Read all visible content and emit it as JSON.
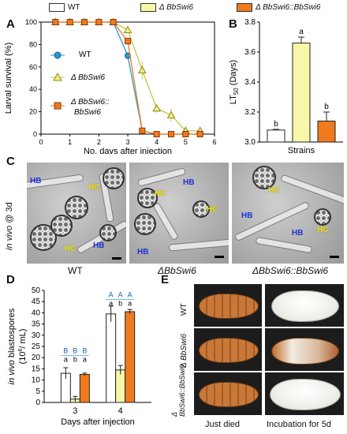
{
  "legend": {
    "items": [
      {
        "label": "WT",
        "color": "#ffffff"
      },
      {
        "label": "Δ BbSwi6",
        "color": "#f8f6a8"
      },
      {
        "label": "Δ BbSwi6::BbSwi6",
        "color": "#f07a1e"
      }
    ]
  },
  "panels": {
    "A": "A",
    "B": "B",
    "C": "C",
    "D": "D",
    "E": "E"
  },
  "chart_data": [
    {
      "id": "A",
      "type": "line",
      "xlabel": "No. days after injection",
      "ylabel": "Larval survival (%)",
      "xlim": [
        0,
        6
      ],
      "ylim": [
        0,
        100
      ],
      "xticks": [
        0,
        1,
        2,
        3,
        4,
        5,
        6
      ],
      "yticks": [
        0,
        20,
        40,
        60,
        80,
        100
      ],
      "series": [
        {
          "name": "WT",
          "color": "#2a9ad0",
          "marker": "circle",
          "x": [
            0.5,
            1,
            1.5,
            2,
            2.5,
            3,
            3.5,
            4,
            4.5,
            5,
            5.5
          ],
          "y": [
            100,
            100,
            100,
            100,
            100,
            70,
            3,
            0,
            0,
            0,
            0
          ],
          "err": [
            0,
            0,
            0,
            0,
            0,
            3,
            2,
            0,
            0,
            0,
            0
          ]
        },
        {
          "name": "Δ BbSwi6",
          "color": "#c8c24a",
          "marker": "triangle",
          "x": [
            0.5,
            1,
            1.5,
            2,
            2.5,
            3,
            3.5,
            4,
            4.5,
            5,
            5.5
          ],
          "y": [
            100,
            100,
            100,
            100,
            100,
            93,
            57,
            23,
            17,
            3,
            3
          ],
          "err": [
            0,
            0,
            0,
            0,
            0,
            3,
            8,
            4,
            6,
            2,
            2
          ]
        },
        {
          "name": "Δ BbSwi6:: BbSwi6",
          "color": "#f07a1e",
          "marker": "square",
          "x": [
            0.5,
            1,
            1.5,
            2,
            2.5,
            3,
            3.5,
            4,
            4.5,
            5,
            5.5
          ],
          "y": [
            100,
            100,
            100,
            100,
            100,
            83,
            3,
            0,
            0,
            0,
            0
          ],
          "err": [
            0,
            0,
            0,
            0,
            0,
            3,
            2,
            0,
            0,
            0,
            0
          ]
        }
      ],
      "series_labels": [
        "WT",
        "Δ BbSwi6",
        "Δ BbSwi6::",
        "BbSwi6"
      ]
    },
    {
      "id": "B",
      "type": "bar",
      "xlabel": "Strains",
      "ylabel_main": "LT",
      "ylabel_sub": "50",
      "ylabel_unit": " (Days)",
      "ylim": [
        3.0,
        3.8
      ],
      "yticks": [
        "3.0",
        "3.2",
        "3.4",
        "3.6",
        "3.8"
      ],
      "categories": [
        "WT",
        "Δ BbSwi6",
        "Δ BbSwi6::BbSwi6"
      ],
      "values": [
        3.08,
        3.66,
        3.14
      ],
      "errors": [
        0.005,
        0.04,
        0.06
      ],
      "colors": [
        "#ffffff",
        "#f8f6a8",
        "#f07a1e"
      ],
      "letters": [
        "b",
        "a",
        "b"
      ]
    },
    {
      "id": "D",
      "type": "bar",
      "xlabel": "Days after injection",
      "ylabel_italic": "in vivo",
      "ylabel_rest": " blastospores",
      "ylabel_unit": "(10",
      "ylabel_sup": "6",
      "ylabel_unit2": "/ mL)",
      "ylim": [
        0,
        50
      ],
      "yticks": [
        0,
        5,
        10,
        15,
        20,
        25,
        30,
        35,
        40,
        45,
        50
      ],
      "categories": [
        "3",
        "4"
      ],
      "series": [
        {
          "name": "WT",
          "color": "#ffffff",
          "values": [
            13,
            39.5
          ],
          "errors": [
            2.5,
            3.5
          ]
        },
        {
          "name": "Δ BbSwi6",
          "color": "#f8f6a8",
          "values": [
            1.5,
            14.5
          ],
          "errors": [
            1.2,
            2
          ]
        },
        {
          "name": "Δ BbSwi6::BbSwi6",
          "color": "#f07a1e",
          "values": [
            12.5,
            40.5
          ],
          "errors": [
            0.6,
            1
          ]
        }
      ],
      "upper_letters": [
        [
          "B",
          "B",
          "B"
        ],
        [
          "A",
          "A",
          "A"
        ]
      ],
      "lower_letters": [
        [
          "a",
          "b",
          "a"
        ],
        [
          "a",
          "b",
          "a"
        ]
      ]
    }
  ],
  "panel_c": {
    "ylabel_italic": "in vivo",
    "ylabel_rest": " @ 3d",
    "captions": [
      "WT",
      "ΔBbSwi6",
      "ΔBbSwi6::BbSwi6"
    ],
    "hb": "HB",
    "hc": "HC"
  },
  "panel_e": {
    "row_labels": [
      "WT",
      "Δ BbSwi6",
      "Δ BbSwi6::BbSwi6"
    ],
    "col_labels": [
      "Just died",
      "Incubation for 5d"
    ]
  }
}
